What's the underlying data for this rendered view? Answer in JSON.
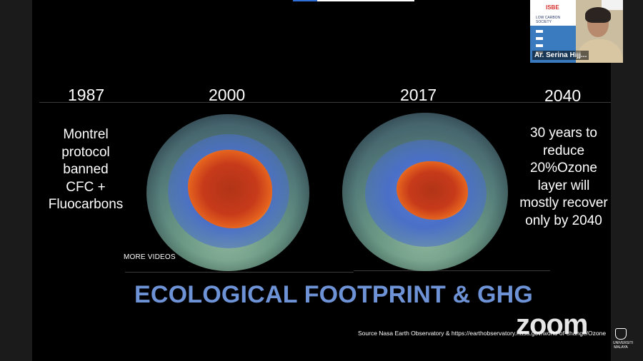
{
  "slide": {
    "years": [
      "1987",
      "2000",
      "2017",
      "2040"
    ],
    "left_note_lines": [
      "Montrel",
      "protocol",
      "banned",
      "CFC +",
      "Fluocarbons"
    ],
    "right_note_lines": [
      "30 years to",
      "reduce",
      "20%Ozone",
      "layer will",
      "mostly recover",
      "only by 2040"
    ],
    "more_videos": "MORE VIDEOS",
    "headline": "ECOLOGICAL FOOTPRINT & GHG",
    "source": "Source Nasa Earth Observatory & https://earthobservatory.nasa.gov/world-of-change/Ozone"
  },
  "participant": {
    "name": "Ar. Serina Hijj..."
  },
  "branding": {
    "app_logo": "zoom",
    "university_lines": [
      "UNIVERSITI",
      "MALAYA"
    ]
  },
  "colors": {
    "headline": "#6d92d6",
    "slide_background": "#000000"
  }
}
